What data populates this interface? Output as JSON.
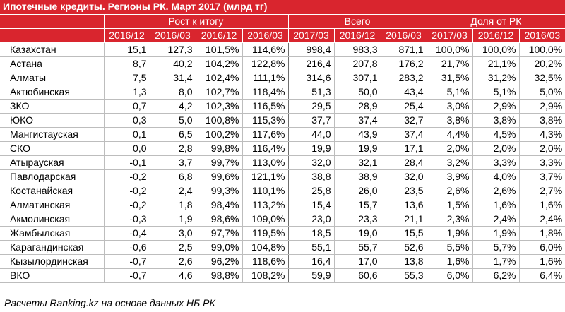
{
  "title": "Ипотечные кредиты. Регионы РК. Март 2017 (млрд тг)",
  "groups": {
    "growth": "Рост к итогу",
    "total": "Всего",
    "share": "Доля от РК"
  },
  "columns": [
    "2016/12",
    "2016/03",
    "2016/12",
    "2016/03",
    "2017/03",
    "2016/12",
    "2016/03",
    "2017/03",
    "2016/12",
    "2016/03"
  ],
  "rows": [
    {
      "region": "Казахстан",
      "values": [
        "15,1",
        "127,3",
        "101,5%",
        "114,6%",
        "998,4",
        "983,3",
        "871,1",
        "100,0%",
        "100,0%",
        "100,0%"
      ]
    },
    {
      "region": "Астана",
      "values": [
        "8,7",
        "40,2",
        "104,2%",
        "122,8%",
        "216,4",
        "207,8",
        "176,2",
        "21,7%",
        "21,1%",
        "20,2%"
      ]
    },
    {
      "region": "Алматы",
      "values": [
        "7,5",
        "31,4",
        "102,4%",
        "111,1%",
        "314,6",
        "307,1",
        "283,2",
        "31,5%",
        "31,2%",
        "32,5%"
      ]
    },
    {
      "region": "Актюбинская",
      "values": [
        "1,3",
        "8,0",
        "102,7%",
        "118,4%",
        "51,3",
        "50,0",
        "43,4",
        "5,1%",
        "5,1%",
        "5,0%"
      ]
    },
    {
      "region": "ЗКО",
      "values": [
        "0,7",
        "4,2",
        "102,3%",
        "116,5%",
        "29,5",
        "28,9",
        "25,4",
        "3,0%",
        "2,9%",
        "2,9%"
      ]
    },
    {
      "region": "ЮКО",
      "values": [
        "0,3",
        "5,0",
        "100,8%",
        "115,3%",
        "37,7",
        "37,4",
        "32,7",
        "3,8%",
        "3,8%",
        "3,8%"
      ]
    },
    {
      "region": "Мангистауская",
      "values": [
        "0,1",
        "6,5",
        "100,2%",
        "117,6%",
        "44,0",
        "43,9",
        "37,4",
        "4,4%",
        "4,5%",
        "4,3%"
      ]
    },
    {
      "region": "СКО",
      "values": [
        "0,0",
        "2,8",
        "99,8%",
        "116,4%",
        "19,9",
        "19,9",
        "17,1",
        "2,0%",
        "2,0%",
        "2,0%"
      ]
    },
    {
      "region": "Атырауская",
      "values": [
        "-0,1",
        "3,7",
        "99,7%",
        "113,0%",
        "32,0",
        "32,1",
        "28,4",
        "3,2%",
        "3,3%",
        "3,3%"
      ]
    },
    {
      "region": "Павлодарская",
      "values": [
        "-0,2",
        "6,8",
        "99,6%",
        "121,1%",
        "38,8",
        "38,9",
        "32,0",
        "3,9%",
        "4,0%",
        "3,7%"
      ]
    },
    {
      "region": "Костанайская",
      "values": [
        "-0,2",
        "2,4",
        "99,3%",
        "110,1%",
        "25,8",
        "26,0",
        "23,5",
        "2,6%",
        "2,6%",
        "2,7%"
      ]
    },
    {
      "region": "Алматинская",
      "values": [
        "-0,2",
        "1,8",
        "98,4%",
        "113,2%",
        "15,4",
        "15,7",
        "13,6",
        "1,5%",
        "1,6%",
        "1,6%"
      ]
    },
    {
      "region": "Акмолинская",
      "values": [
        "-0,3",
        "1,9",
        "98,6%",
        "109,0%",
        "23,0",
        "23,3",
        "21,1",
        "2,3%",
        "2,4%",
        "2,4%"
      ]
    },
    {
      "region": "Жамбылская",
      "values": [
        "-0,4",
        "3,0",
        "97,7%",
        "119,5%",
        "18,5",
        "19,0",
        "15,5",
        "1,9%",
        "1,9%",
        "1,8%"
      ]
    },
    {
      "region": "Карагандинская",
      "values": [
        "-0,6",
        "2,5",
        "99,0%",
        "104,8%",
        "55,1",
        "55,7",
        "52,6",
        "5,5%",
        "5,7%",
        "6,0%"
      ]
    },
    {
      "region": "Кызылординская",
      "values": [
        "-0,7",
        "2,6",
        "96,2%",
        "118,6%",
        "16,4",
        "17,0",
        "13,8",
        "1,6%",
        "1,7%",
        "1,6%"
      ]
    },
    {
      "region": "ВКО",
      "values": [
        "-0,7",
        "4,6",
        "98,8%",
        "108,2%",
        "59,9",
        "60,6",
        "55,3",
        "6,0%",
        "6,2%",
        "6,4%"
      ]
    }
  ],
  "footer": "Расчеты Ranking.kz на основе данных НБ РК",
  "colors": {
    "header_bg": "#d9252e",
    "header_text": "#ffffff",
    "grid": "#bdbdbd"
  }
}
